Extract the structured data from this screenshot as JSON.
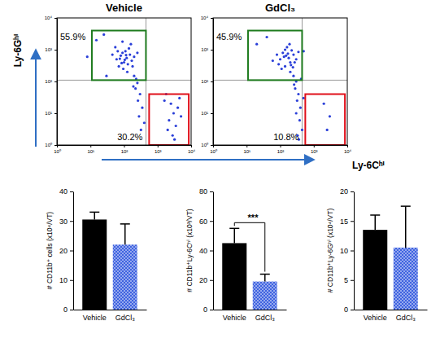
{
  "chart_data": [
    {
      "type": "scatter",
      "title": "Vehicle",
      "color": "#2a3fd8",
      "marker": "dot",
      "log": true,
      "ylabel": "Ly-6Gʰⁱ",
      "x": [
        60,
        80,
        100,
        120,
        90,
        70,
        150,
        110,
        130,
        200,
        55,
        95,
        170,
        140,
        75,
        85,
        115,
        180,
        65,
        105,
        250,
        45,
        125,
        160,
        90,
        200,
        250,
        220,
        300,
        260,
        350,
        280,
        400,
        320,
        230,
        190,
        1800,
        2500,
        3000,
        2200,
        4000,
        3500,
        2800,
        1600,
        5000,
        2000,
        4500,
        3200,
        15,
        25,
        8,
        30
      ],
      "y": [
        500,
        650,
        400,
        550,
        800,
        300,
        700,
        900,
        350,
        600,
        1200,
        250,
        450,
        1100,
        520,
        380,
        680,
        300,
        900,
        480,
        800,
        700,
        200,
        1500,
        1800,
        150,
        90,
        60,
        40,
        25,
        15,
        8,
        5,
        3,
        120,
        70,
        40,
        20,
        10,
        6,
        15,
        4,
        2,
        25,
        8,
        3,
        30,
        1.5,
        2000,
        3000,
        600,
        150
      ],
      "xlim": [
        1,
        10000
      ],
      "ylim": [
        1,
        10000
      ],
      "xticks": [
        {
          "value": 1,
          "label": "10⁰"
        },
        {
          "value": 10,
          "label": "10¹"
        },
        {
          "value": 100,
          "label": "10²"
        },
        {
          "value": 1000,
          "label": "10³"
        },
        {
          "value": 10000,
          "label": "10⁴"
        }
      ],
      "yticks": [
        {
          "value": 1,
          "label": "10⁰"
        },
        {
          "value": 10,
          "label": "10¹"
        },
        {
          "value": 100,
          "label": "10²"
        },
        {
          "value": 1000,
          "label": "10³"
        },
        {
          "value": 10000,
          "label": "10⁴"
        }
      ],
      "quadrant": {
        "x": 450,
        "y": 110
      },
      "gates": [
        {
          "value": 55.9,
          "label": "55.9%",
          "color": "#1e7b1e",
          "x": [
            11,
            450
          ],
          "y": [
            110,
            4000
          ]
        },
        {
          "value": 30.2,
          "label": "30.2%",
          "color": "#e0101a",
          "x": [
            560,
            8500
          ],
          "y": [
            1,
            40
          ]
        }
      ]
    },
    {
      "type": "scatter",
      "title": "GdCl₃",
      "color": "#2a3fd8",
      "marker": "dot",
      "log": true,
      "xlabel": "Ly-6Cʰⁱ",
      "x": [
        100,
        150,
        200,
        120,
        180,
        250,
        90,
        220,
        140,
        300,
        160,
        110,
        270,
        130,
        200,
        80,
        350,
        190,
        240,
        60,
        170,
        210,
        140,
        250,
        300,
        280,
        350,
        320,
        400,
        300,
        380,
        450,
        330,
        260,
        420,
        500,
        360,
        2000,
        3000,
        2500,
        20,
        40,
        500
      ],
      "y": [
        500,
        650,
        400,
        800,
        550,
        700,
        350,
        950,
        300,
        500,
        1200,
        250,
        400,
        600,
        200,
        700,
        850,
        1500,
        280,
        450,
        750,
        330,
        1000,
        150,
        100,
        60,
        40,
        25,
        15,
        10,
        6,
        3,
        2,
        80,
        120,
        30,
        1.5,
        20,
        8,
        3,
        1500,
        2500,
        900
      ],
      "xlim": [
        1,
        10000
      ],
      "ylim": [
        1,
        10000
      ],
      "xticks": [
        {
          "value": 1,
          "label": "10⁰"
        },
        {
          "value": 10,
          "label": "10¹"
        },
        {
          "value": 100,
          "label": "10²"
        },
        {
          "value": 1000,
          "label": "10³"
        },
        {
          "value": 10000,
          "label": "10⁴"
        }
      ],
      "yticks": [
        {
          "value": 1,
          "label": "10⁰"
        },
        {
          "value": 10,
          "label": "10¹"
        },
        {
          "value": 100,
          "label": "10²"
        },
        {
          "value": 1000,
          "label": "10³"
        },
        {
          "value": 10000,
          "label": "10⁴"
        }
      ],
      "quadrant": {
        "x": 450,
        "y": 110
      },
      "gates": [
        {
          "value": 45.9,
          "label": "45.9%",
          "color": "#1e7b1e",
          "x": [
            11,
            450
          ],
          "y": [
            110,
            4000
          ]
        },
        {
          "value": 10.8,
          "label": "10.8%",
          "color": "#e0101a",
          "x": [
            560,
            8500
          ],
          "y": [
            1,
            40
          ]
        }
      ]
    },
    {
      "type": "bar",
      "ylabel": "# CD11b⁺ cells (x10⁴/VT)",
      "categories": [
        "Vehicle",
        "GdCl₃"
      ],
      "values": [
        30.5,
        22
      ],
      "errors": [
        2.5,
        7
      ],
      "colors": [
        "#000000",
        "#3f63e0"
      ],
      "ylim": [
        0,
        40
      ],
      "yticks": [
        0,
        10,
        20,
        30,
        40
      ]
    },
    {
      "type": "bar",
      "ylabel": "# CD11b⁺Ly-6Cʰⁱ (x10³/VT)",
      "categories": [
        "Vehicle",
        "GdCl₃"
      ],
      "values": [
        45,
        19
      ],
      "errors": [
        10,
        5
      ],
      "colors": [
        "#000000",
        "#3f63e0"
      ],
      "ylim": [
        0,
        80
      ],
      "yticks": [
        0,
        20,
        40,
        60,
        80
      ],
      "significance": {
        "label": "***",
        "between": [
          0,
          1
        ]
      }
    },
    {
      "type": "bar",
      "ylabel": "# CD11b⁺Ly-6Gʰⁱ (x10⁴/VT)",
      "categories": [
        "Vehicle",
        "GdCl₃"
      ],
      "values": [
        13.5,
        10.5
      ],
      "errors": [
        2.5,
        7
      ],
      "colors": [
        "#000000",
        "#3f63e0"
      ],
      "ylim": [
        0,
        20
      ],
      "yticks": [
        0,
        5,
        10,
        15,
        20
      ]
    }
  ]
}
